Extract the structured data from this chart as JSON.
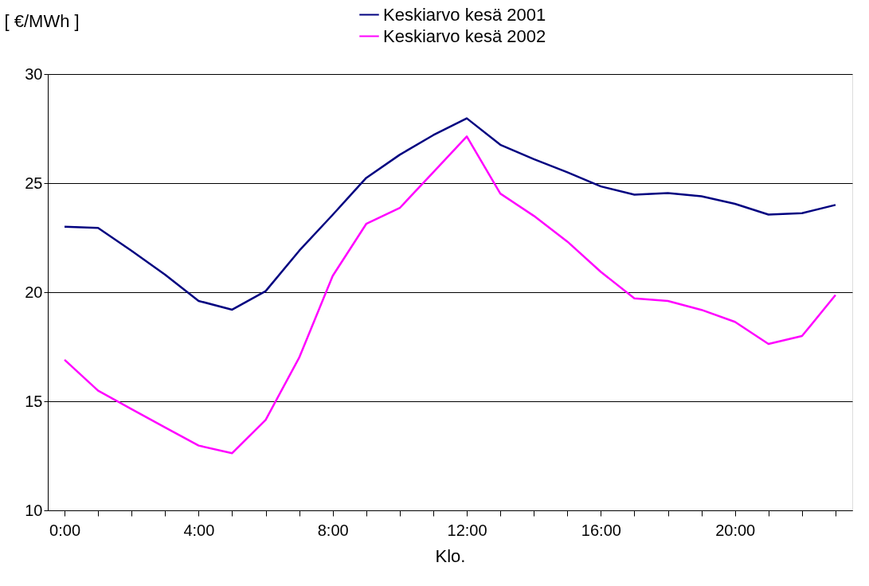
{
  "chart_data": {
    "type": "line",
    "ylabel": "[ €/MWh ]",
    "xlabel": "Klo.",
    "categories": [
      "0:00",
      null,
      null,
      null,
      "4:00",
      null,
      null,
      null,
      "8:00",
      null,
      null,
      null,
      "12:00",
      null,
      null,
      null,
      "16:00",
      null,
      null,
      null,
      "20:00",
      null,
      null,
      null
    ],
    "series": [
      {
        "name": "Keskiarvo kesä 2001",
        "color": "#000080",
        "values": [
          23.0,
          22.95,
          21.9,
          20.8,
          19.6,
          19.2,
          20.05,
          21.9,
          23.55,
          25.24,
          26.3,
          27.2,
          27.97,
          26.76,
          26.1,
          25.5,
          24.85,
          24.47,
          24.54,
          24.4,
          24.05,
          23.56,
          23.62,
          24.0
        ]
      },
      {
        "name": "Keskiarvo kesä 2002",
        "color": "#ff00ff",
        "values": [
          16.9,
          15.49,
          14.64,
          13.8,
          12.97,
          12.62,
          14.15,
          17.0,
          20.75,
          23.13,
          23.86,
          25.5,
          27.14,
          24.52,
          23.5,
          22.32,
          20.93,
          19.72,
          19.6,
          19.19,
          18.64,
          17.63,
          17.99,
          19.87
        ]
      }
    ],
    "ylim": [
      10,
      30
    ],
    "yticks": [
      10,
      15,
      20,
      25,
      30
    ],
    "grid": "y",
    "legend": "top",
    "marker": "none",
    "line_style": "solid"
  }
}
